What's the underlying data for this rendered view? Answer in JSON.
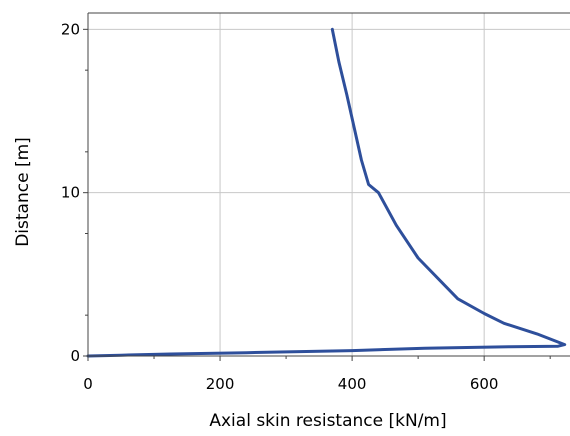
{
  "chart_data": {
    "type": "line",
    "title": "",
    "xlabel": "Axial skin resistance [kN/m]",
    "ylabel": "Distance [m]",
    "xlim": [
      0,
      730
    ],
    "ylim": [
      0,
      21
    ],
    "x_ticks": [
      "0",
      "200",
      "400",
      "600"
    ],
    "y_ticks": [
      "0",
      "10",
      "20"
    ],
    "grid": true,
    "legend": "none",
    "series": [
      {
        "color": "#2e4f9b",
        "points": [
          [
            370,
            20.0
          ],
          [
            380,
            18.0
          ],
          [
            392,
            16.0
          ],
          [
            403,
            14.0
          ],
          [
            414,
            12.0
          ],
          [
            425,
            10.5
          ],
          [
            440,
            10.0
          ],
          [
            467,
            8.0
          ],
          [
            500,
            6.0
          ],
          [
            560,
            3.5
          ],
          [
            600,
            2.6
          ],
          [
            630,
            2.0
          ],
          [
            680,
            1.35
          ],
          [
            722,
            0.7
          ],
          [
            712,
            0.6
          ],
          [
            640,
            0.57
          ],
          [
            510,
            0.48
          ],
          [
            400,
            0.33
          ],
          [
            240,
            0.2
          ],
          [
            125,
            0.12
          ],
          [
            50,
            0.05
          ],
          [
            0,
            0.0
          ]
        ]
      }
    ]
  }
}
